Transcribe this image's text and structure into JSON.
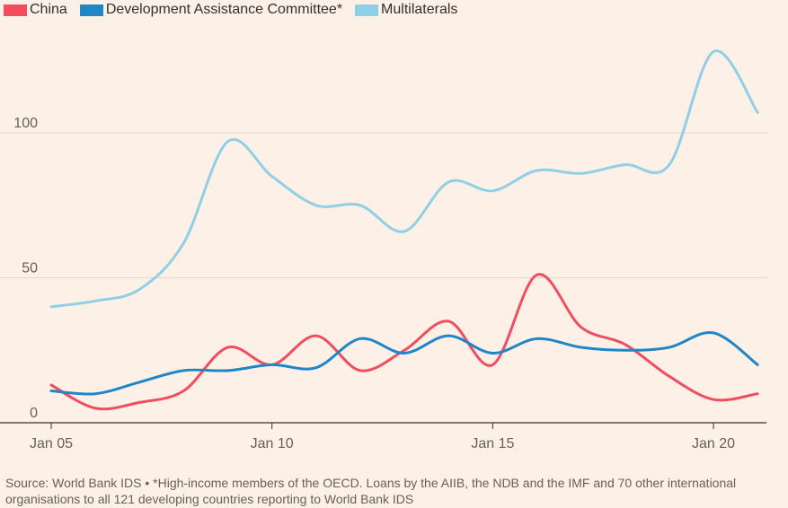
{
  "legend": {
    "items": [
      {
        "label": "China",
        "color": "#f04e5f"
      },
      {
        "label": "Development Assistance Committee*",
        "color": "#1f86c8"
      },
      {
        "label": "Multilaterals",
        "color": "#8fd0e6"
      }
    ]
  },
  "source": {
    "line1": "Source: World Bank IDS • *High-income members of the OECD. Loans by the AIIB, the NDB and the IMF and 70 other international",
    "line2": "organisations to all 121 developing countries reporting to World Bank IDS"
  },
  "chart_data": {
    "type": "line",
    "title": "",
    "xlabel": "",
    "ylabel": "",
    "xlim": [
      2005,
      2021.2
    ],
    "ylim": [
      0,
      125
    ],
    "yticks": [
      0,
      50,
      100
    ],
    "ytick_labels": [
      "0",
      "50",
      "100"
    ],
    "xticks": [
      2005,
      2010,
      2015,
      2020
    ],
    "xtick_labels": [
      "Jan 05",
      "Jan 10",
      "Jan 15",
      "Jan 20"
    ],
    "grid": "horizontal",
    "legend_position": "top-left",
    "x": [
      2005,
      2006,
      2007,
      2008,
      2009,
      2010,
      2011,
      2012,
      2013,
      2014,
      2015,
      2016,
      2017,
      2018,
      2019,
      2020,
      2021
    ],
    "series": [
      {
        "name": "Multilaterals",
        "color": "#8fd0e6",
        "values": [
          40,
          42,
          46,
          62,
          97,
          85,
          75,
          75,
          66,
          83,
          80,
          87,
          86,
          89,
          89,
          128,
          107
        ]
      },
      {
        "name": "China",
        "color": "#f04e5f",
        "values": [
          13,
          5,
          7,
          11,
          26,
          20,
          30,
          18,
          25,
          35,
          20,
          51,
          33,
          27,
          16,
          8,
          10
        ]
      },
      {
        "name": "Development Assistance Committee*",
        "color": "#1f86c8",
        "values": [
          11,
          10,
          14,
          18,
          18,
          20,
          19,
          29,
          24,
          30,
          24,
          29,
          26,
          25,
          26,
          31,
          20
        ]
      }
    ]
  }
}
